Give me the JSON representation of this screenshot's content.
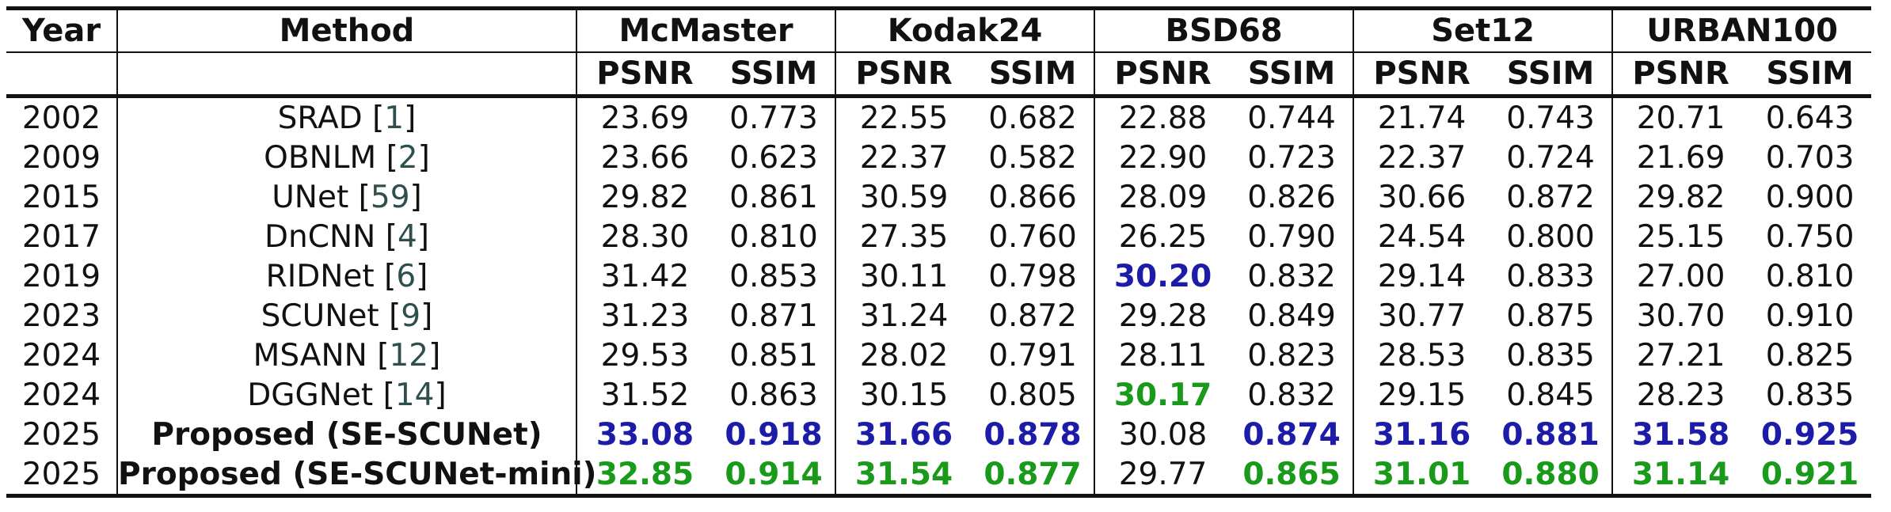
{
  "header": {
    "year": "Year",
    "method": "Method",
    "datasets": [
      "McMaster",
      "Kodak24",
      "BSD68",
      "Set12",
      "URBAN100"
    ],
    "metrics": [
      "PSNR",
      "SSIM"
    ]
  },
  "colors": {
    "best": "#1c1ca8",
    "second": "#1a9a1a",
    "citation": "#2f4f4f"
  },
  "rows": [
    {
      "year": "2002",
      "method": "SRAD ",
      "cite": "1",
      "bold": false,
      "values": [
        "23.69",
        "0.773",
        "22.55",
        "0.682",
        "22.88",
        "0.744",
        "21.74",
        "0.743",
        "20.71",
        "0.643"
      ],
      "styles": [
        "",
        "",
        "",
        "",
        "",
        "",
        "",
        "",
        "",
        ""
      ]
    },
    {
      "year": "2009",
      "method": "OBNLM ",
      "cite": "2",
      "bold": false,
      "values": [
        "23.66",
        "0.623",
        "22.37",
        "0.582",
        "22.90",
        "0.723",
        "22.37",
        "0.724",
        "21.69",
        "0.703"
      ],
      "styles": [
        "",
        "",
        "",
        "",
        "",
        "",
        "",
        "",
        "",
        ""
      ]
    },
    {
      "year": "2015",
      "method": "UNet ",
      "cite": "59",
      "bold": false,
      "values": [
        "29.82",
        "0.861",
        "30.59",
        "0.866",
        "28.09",
        "0.826",
        "30.66",
        "0.872",
        "29.82",
        "0.900"
      ],
      "styles": [
        "",
        "",
        "",
        "",
        "",
        "",
        "",
        "",
        "",
        ""
      ]
    },
    {
      "year": "2017",
      "method": "DnCNN ",
      "cite": "4",
      "bold": false,
      "values": [
        "28.30",
        "0.810",
        "27.35",
        "0.760",
        "26.25",
        "0.790",
        "24.54",
        "0.800",
        "25.15",
        "0.750"
      ],
      "styles": [
        "",
        "",
        "",
        "",
        "",
        "",
        "",
        "",
        "",
        ""
      ]
    },
    {
      "year": "2019",
      "method": "RIDNet ",
      "cite": "6",
      "bold": false,
      "values": [
        "31.42",
        "0.853",
        "30.11",
        "0.798",
        "30.20",
        "0.832",
        "29.14",
        "0.833",
        "27.00",
        "0.810"
      ],
      "styles": [
        "",
        "",
        "",
        "",
        "blue",
        "",
        "",
        "",
        "",
        ""
      ]
    },
    {
      "year": "2023",
      "method": "SCUNet ",
      "cite": "9",
      "bold": false,
      "values": [
        "31.23",
        "0.871",
        "31.24",
        "0.872",
        "29.28",
        "0.849",
        "30.77",
        "0.875",
        "30.70",
        "0.910"
      ],
      "styles": [
        "",
        "",
        "",
        "",
        "",
        "",
        "",
        "",
        "",
        ""
      ]
    },
    {
      "year": "2024",
      "method": "MSANN ",
      "cite": "12",
      "bold": false,
      "values": [
        "29.53",
        "0.851",
        "28.02",
        "0.791",
        "28.11",
        "0.823",
        "28.53",
        "0.835",
        "27.21",
        "0.825"
      ],
      "styles": [
        "",
        "",
        "",
        "",
        "",
        "",
        "",
        "",
        "",
        ""
      ]
    },
    {
      "year": "2024",
      "method": "DGGNet ",
      "cite": "14",
      "bold": false,
      "values": [
        "31.52",
        "0.863",
        "30.15",
        "0.805",
        "30.17",
        "0.832",
        "29.15",
        "0.845",
        "28.23",
        "0.835"
      ],
      "styles": [
        "",
        "",
        "",
        "",
        "green",
        "",
        "",
        "",
        "",
        ""
      ]
    },
    {
      "year": "2025",
      "method": "Proposed (SE-SCUNet)",
      "cite": "",
      "bold": true,
      "values": [
        "33.08",
        "0.918",
        "31.66",
        "0.878",
        "30.08",
        "0.874",
        "31.16",
        "0.881",
        "31.58",
        "0.925"
      ],
      "styles": [
        "blue",
        "blue",
        "blue",
        "blue",
        "",
        "blue",
        "blue",
        "blue",
        "blue",
        "blue"
      ]
    },
    {
      "year": "2025",
      "method": "Proposed (SE-SCUNet-mini)",
      "cite": "",
      "bold": true,
      "values": [
        "32.85",
        "0.914",
        "31.54",
        "0.877",
        "29.77",
        "0.865",
        "31.01",
        "0.880",
        "31.14",
        "0.921"
      ],
      "styles": [
        "green",
        "green",
        "green",
        "green",
        "",
        "green",
        "green",
        "green",
        "green",
        "green"
      ]
    }
  ]
}
